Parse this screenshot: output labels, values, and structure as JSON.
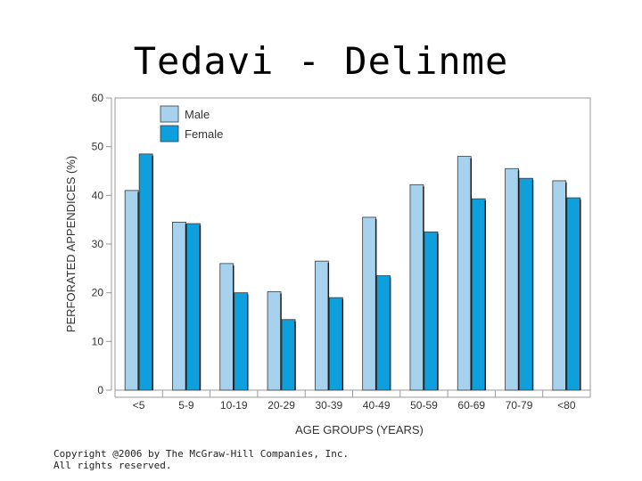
{
  "page": {
    "title": "Tedavi - Delinme",
    "copyright_line1": "Copyright @2006 by The McGraw-Hill Companies, Inc.",
    "copyright_line2": "All rights reserved."
  },
  "chart_data": {
    "type": "bar",
    "title": "",
    "xlabel": "AGE GROUPS (YEARS)",
    "ylabel": "PERFORATED APPENDICES (%)",
    "ylim": [
      0,
      60
    ],
    "yticks": [
      0,
      10,
      20,
      30,
      40,
      50,
      60
    ],
    "grid": false,
    "legend_position": "top-left",
    "categories": [
      "<5",
      "5-9",
      "10-19",
      "20-29",
      "30-39",
      "40-49",
      "50-59",
      "60-69",
      "70-79",
      "<80"
    ],
    "series": [
      {
        "name": "Male",
        "color": "#a6d2ee",
        "values": [
          41,
          34.5,
          26,
          20.2,
          26.5,
          35.5,
          42.2,
          48,
          45.5,
          43
        ]
      },
      {
        "name": "Female",
        "color": "#0ea0dc",
        "values": [
          48.5,
          34.2,
          20,
          14.5,
          19,
          23.5,
          32.5,
          39.3,
          43.5,
          39.5
        ]
      }
    ]
  }
}
